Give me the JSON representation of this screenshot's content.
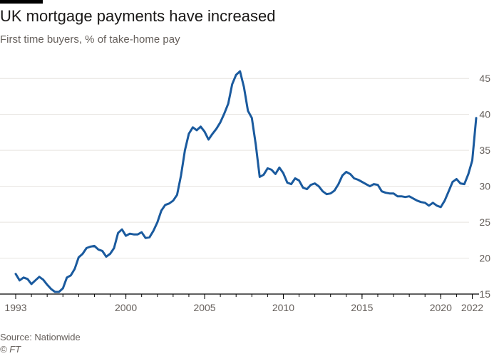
{
  "header": {
    "title": "UK mortgage payments have increased",
    "subtitle": "First time buyers, % of take-home pay"
  },
  "footer": {
    "source": "Source: Nationwide",
    "credit": "© FT"
  },
  "colors": {
    "line": "#1a5a9e",
    "grid": "#e6e3df",
    "axis": "#000000",
    "tick_text": "#66605c"
  },
  "chart_data": {
    "type": "line",
    "title": "UK mortgage payments have increased",
    "subtitle": "First time buyers, % of take-home pay",
    "xlabel": "",
    "ylabel": "",
    "xlim": [
      1993,
      2022.25
    ],
    "ylim": [
      15,
      47
    ],
    "x_ticks": [
      1993,
      2000,
      2005,
      2010,
      2015,
      2020,
      2022
    ],
    "x_tick_labels": [
      "1993",
      "2000",
      "2005",
      "2010",
      "2015",
      "2020",
      "2022"
    ],
    "y_ticks": [
      15,
      20,
      25,
      30,
      35,
      40,
      45
    ],
    "y_tick_labels": [
      "15",
      "20",
      "25",
      "30",
      "35",
      "40",
      "45"
    ],
    "y_axis_side": "right",
    "grid": "horizontal",
    "series": [
      {
        "name": "",
        "x": [
          1993.0,
          1993.25,
          1993.5,
          1993.75,
          1994.0,
          1994.25,
          1994.5,
          1994.75,
          1995.0,
          1995.25,
          1995.5,
          1995.75,
          1996.0,
          1996.25,
          1996.5,
          1996.75,
          1997.0,
          1997.25,
          1997.5,
          1997.75,
          1998.0,
          1998.25,
          1998.5,
          1998.75,
          1999.0,
          1999.25,
          1999.5,
          1999.75,
          2000.0,
          2000.25,
          2000.5,
          2000.75,
          2001.0,
          2001.25,
          2001.5,
          2001.75,
          2002.0,
          2002.25,
          2002.5,
          2002.75,
          2003.0,
          2003.25,
          2003.5,
          2003.75,
          2004.0,
          2004.25,
          2004.5,
          2004.75,
          2005.0,
          2005.25,
          2005.5,
          2005.75,
          2006.0,
          2006.25,
          2006.5,
          2006.75,
          2007.0,
          2007.25,
          2007.5,
          2007.75,
          2008.0,
          2008.25,
          2008.5,
          2008.75,
          2009.0,
          2009.25,
          2009.5,
          2009.75,
          2010.0,
          2010.25,
          2010.5,
          2010.75,
          2011.0,
          2011.25,
          2011.5,
          2011.75,
          2012.0,
          2012.25,
          2012.5,
          2012.75,
          2013.0,
          2013.25,
          2013.5,
          2013.75,
          2014.0,
          2014.25,
          2014.5,
          2014.75,
          2015.0,
          2015.25,
          2015.5,
          2015.75,
          2016.0,
          2016.25,
          2016.5,
          2016.75,
          2017.0,
          2017.25,
          2017.5,
          2017.75,
          2018.0,
          2018.25,
          2018.5,
          2018.75,
          2019.0,
          2019.25,
          2019.5,
          2019.75,
          2020.0,
          2020.25,
          2020.5,
          2020.75,
          2021.0,
          2021.25,
          2021.5,
          2021.75,
          2022.0,
          2022.25
        ],
        "values": [
          17.8,
          16.9,
          17.3,
          17.1,
          16.4,
          16.9,
          17.4,
          17.0,
          16.3,
          15.7,
          15.3,
          15.3,
          15.8,
          17.3,
          17.6,
          18.5,
          20.1,
          20.6,
          21.4,
          21.6,
          21.7,
          21.2,
          21.0,
          20.2,
          20.6,
          21.4,
          23.5,
          24.0,
          23.1,
          23.4,
          23.3,
          23.3,
          23.6,
          22.8,
          22.9,
          23.8,
          25.0,
          26.6,
          27.4,
          27.6,
          28.0,
          28.8,
          31.5,
          35.0,
          37.3,
          38.2,
          37.8,
          38.3,
          37.6,
          36.5,
          37.3,
          38.0,
          38.9,
          40.1,
          41.5,
          44.2,
          45.5,
          46.0,
          43.8,
          40.5,
          39.5,
          35.8,
          31.3,
          31.6,
          32.5,
          32.3,
          31.7,
          32.6,
          31.8,
          30.5,
          30.3,
          31.1,
          30.8,
          29.8,
          29.6,
          30.2,
          30.4,
          30.0,
          29.3,
          28.9,
          29.0,
          29.4,
          30.3,
          31.5,
          32.0,
          31.7,
          31.1,
          30.9,
          30.6,
          30.3,
          30.0,
          30.3,
          30.2,
          29.3,
          29.1,
          29.0,
          29.0,
          28.6,
          28.6,
          28.5,
          28.6,
          28.3,
          28.0,
          27.8,
          27.7,
          27.3,
          27.7,
          27.3,
          27.1,
          28.0,
          29.3,
          30.6,
          31.0,
          30.4,
          30.3,
          31.7,
          33.6,
          39.5
        ]
      }
    ]
  }
}
